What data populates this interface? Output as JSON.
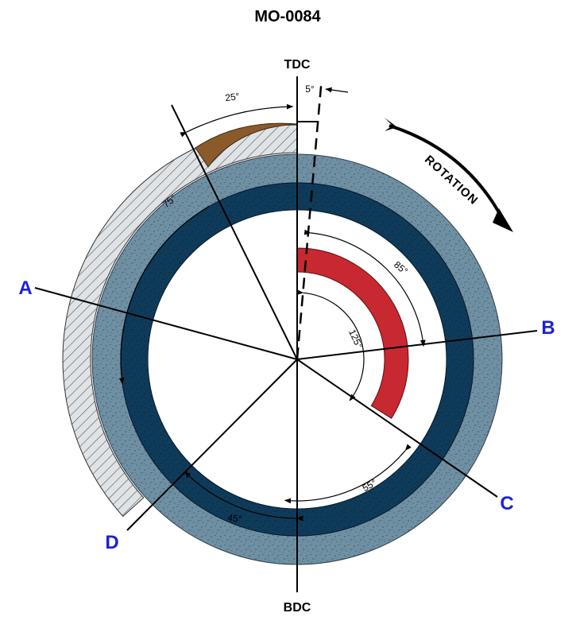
{
  "title": "MO-0084",
  "top_label": "TDC",
  "bottom_label": "BDC",
  "rotation_label": "ROTATION",
  "points": [
    {
      "id": "a",
      "label": "A"
    },
    {
      "id": "b",
      "label": "B"
    },
    {
      "id": "c",
      "label": "C"
    },
    {
      "id": "d",
      "label": "D"
    }
  ],
  "angles": {
    "a25": "25°",
    "a5": "5°",
    "a75": "75°",
    "a85": "85°",
    "a125": "125°",
    "a55": "55°",
    "a45": "45°"
  },
  "colors": {
    "hatch_band": "#dfe3e6",
    "brown_segment": "#8b5a2b",
    "light_ring": "#6f8fa3",
    "dark_ring": "#0f3b5a",
    "red_arc": "#c8282f",
    "point_label": "#1c22d8"
  }
}
